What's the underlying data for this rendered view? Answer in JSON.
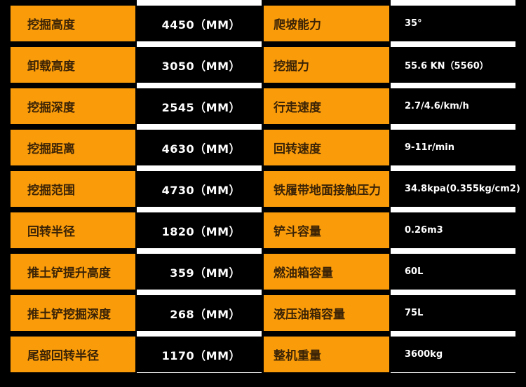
{
  "rows": [
    {
      "label_left": "挖掘高度",
      "value_left": "4450（MM）",
      "label_right": "爬坡能力",
      "value_right": "35°"
    },
    {
      "label_left": "卸载高度",
      "value_left": "3050（MM）",
      "label_right": "挖掘力",
      "value_right": "55.6 KN（5560）"
    },
    {
      "label_left": "挖掘深度",
      "value_left": "2545（MM）",
      "label_right": "行走速度",
      "value_right": "2.7/4.6/km/h"
    },
    {
      "label_left": "挖掘距离",
      "value_left": "4630（MM）",
      "label_right": "回转速度",
      "value_right": "9-11r/min"
    },
    {
      "label_left": "挖掘范围",
      "value_left": "4730（MM）",
      "label_right": "铁履带地面接触压力",
      "value_right": "34.8kpa(0.355kg/cm2)"
    },
    {
      "label_left": "回转半径",
      "value_left": "1820（MM）",
      "label_right": "铲斗容量",
      "value_right": "0.26m3"
    },
    {
      "label_left": "推土铲提升高度",
      "value_left": "359（MM）",
      "label_right": "燃油箱容量",
      "value_right": "60L"
    },
    {
      "label_left": "推土铲挖掘深度",
      "value_left": "268（MM）",
      "label_right": "液压油箱容量",
      "value_right": "75L"
    },
    {
      "label_left": "尾部回转半径",
      "value_left": "1170（MM）",
      "label_right": "整机重量",
      "value_right": "3600kg"
    }
  ],
  "colors": {
    "label_bg": "#fa9c0a",
    "label_text": "#3b2306",
    "value_bg": "#000000",
    "value_text": "#ffffff"
  }
}
